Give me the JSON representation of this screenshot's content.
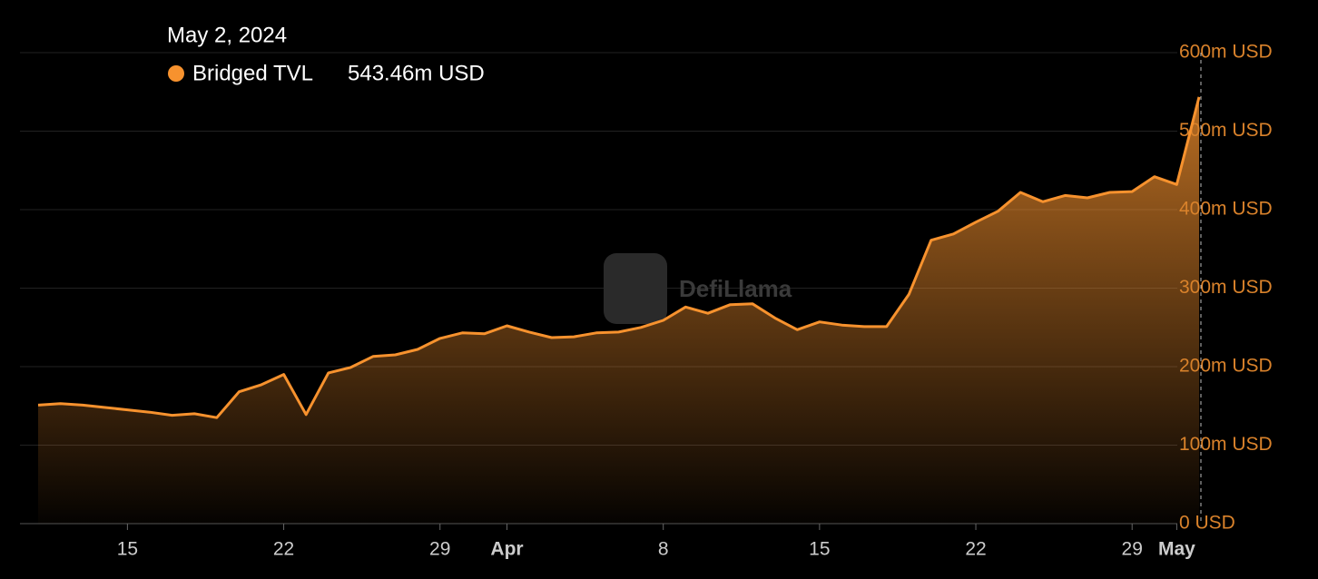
{
  "chart_data": {
    "type": "area",
    "tooltip": {
      "title": "May 2, 2024",
      "value_label": "543.46m USD"
    },
    "watermark": "DefiLlama",
    "x": [
      "2024-03-11",
      "2024-03-12",
      "2024-03-13",
      "2024-03-14",
      "2024-03-15",
      "2024-03-16",
      "2024-03-17",
      "2024-03-18",
      "2024-03-19",
      "2024-03-20",
      "2024-03-21",
      "2024-03-22",
      "2024-03-23",
      "2024-03-24",
      "2024-03-25",
      "2024-03-26",
      "2024-03-27",
      "2024-03-28",
      "2024-03-29",
      "2024-03-30",
      "2024-03-31",
      "2024-04-01",
      "2024-04-02",
      "2024-04-03",
      "2024-04-04",
      "2024-04-05",
      "2024-04-06",
      "2024-04-07",
      "2024-04-08",
      "2024-04-09",
      "2024-04-10",
      "2024-04-11",
      "2024-04-12",
      "2024-04-13",
      "2024-04-14",
      "2024-04-15",
      "2024-04-16",
      "2024-04-17",
      "2024-04-18",
      "2024-04-19",
      "2024-04-20",
      "2024-04-21",
      "2024-04-22",
      "2024-04-23",
      "2024-04-24",
      "2024-04-25",
      "2024-04-26",
      "2024-04-27",
      "2024-04-28",
      "2024-04-29",
      "2024-04-30",
      "2024-05-01",
      "2024-05-02"
    ],
    "series": [
      {
        "name": "Bridged TVL",
        "color": "#f7922e",
        "values": [
          151,
          153,
          151,
          148,
          145,
          142,
          138,
          140,
          135,
          168,
          177,
          190,
          139,
          192,
          199,
          213,
          215,
          222,
          236,
          243,
          242,
          252,
          244,
          237,
          238,
          243,
          244,
          250,
          259,
          276,
          268,
          279,
          280,
          262,
          247,
          257,
          253,
          251,
          251,
          292,
          361,
          369,
          384,
          398,
          422,
          410,
          418,
          415,
          422,
          423,
          442,
          432,
          543.46
        ]
      }
    ],
    "ylim": [
      0,
      600
    ],
    "yticks": [
      {
        "value": 0,
        "label": "0 USD"
      },
      {
        "value": 100,
        "label": "100m USD"
      },
      {
        "value": 200,
        "label": "200m USD"
      },
      {
        "value": 300,
        "label": "300m USD"
      },
      {
        "value": 400,
        "label": "400m USD"
      },
      {
        "value": 500,
        "label": "500m USD"
      },
      {
        "value": 600,
        "label": "600m USD"
      }
    ],
    "xticks": [
      {
        "value": "2024-03-15",
        "label": "15"
      },
      {
        "value": "2024-03-22",
        "label": "22"
      },
      {
        "value": "2024-03-29",
        "label": "29"
      },
      {
        "value": "2024-04-01",
        "label": "Apr"
      },
      {
        "value": "2024-04-08",
        "label": "8"
      },
      {
        "value": "2024-04-15",
        "label": "15"
      },
      {
        "value": "2024-04-22",
        "label": "22"
      },
      {
        "value": "2024-04-29",
        "label": "29"
      },
      {
        "value": "2024-05-01",
        "label": "May"
      }
    ],
    "grid": true
  }
}
